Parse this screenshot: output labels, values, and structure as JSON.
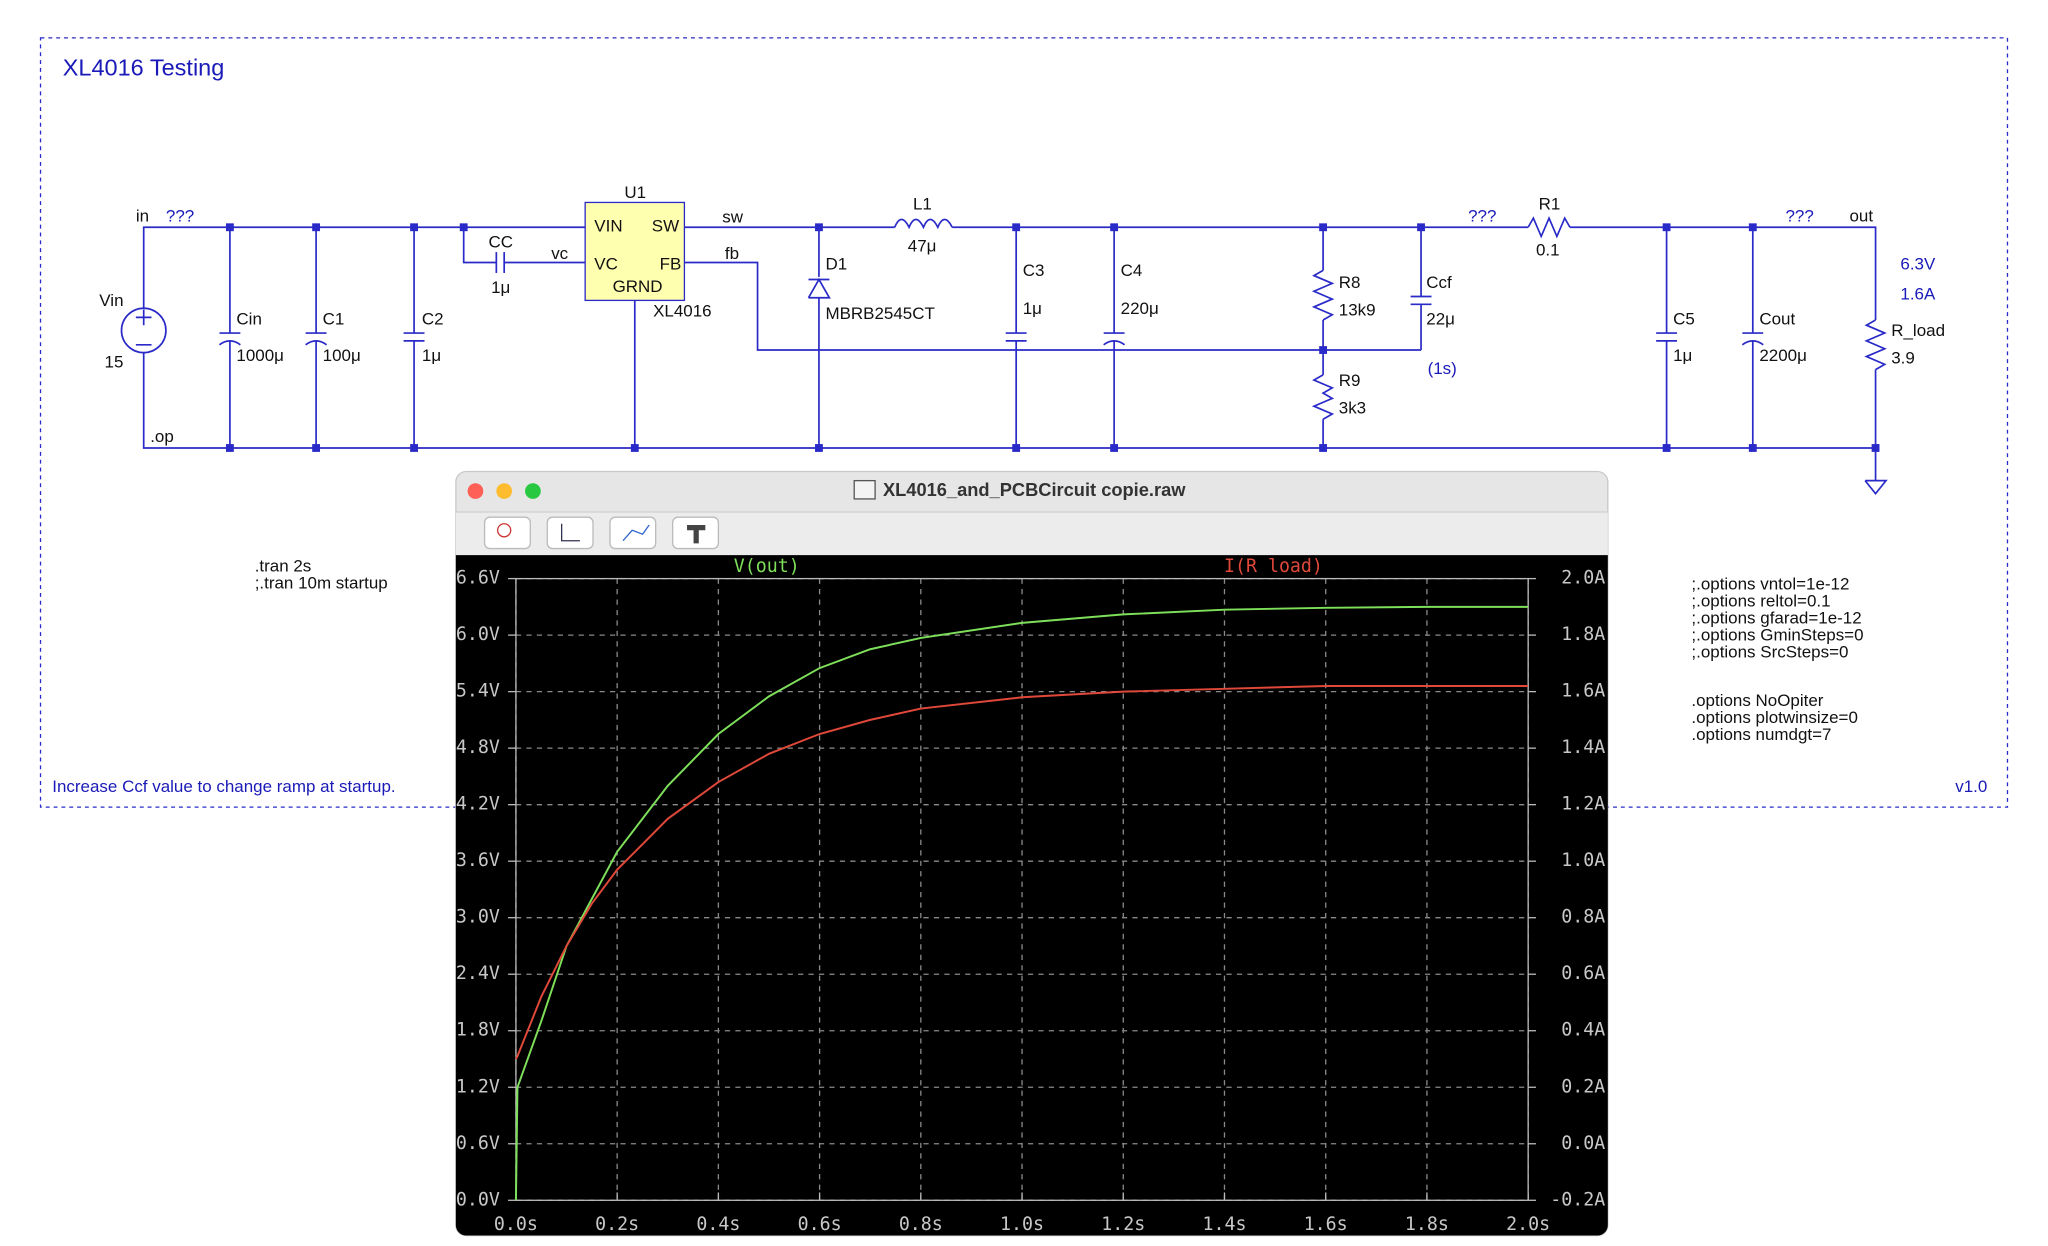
{
  "schematic": {
    "title": "XL4016 Testing",
    "texts": [
      "in",
      "???",
      "Vin",
      "15",
      ".op",
      "Cin",
      "1000μ",
      "C1",
      "100μ",
      "C2",
      "1μ",
      "CC",
      "1μ",
      "vc",
      "U1",
      "VIN",
      "SW",
      "VC",
      "FB",
      "GRND",
      "XL4016",
      "sw",
      "fb",
      "D1",
      "MBRB2545CT",
      "L1",
      "47μ",
      "C3",
      "1μ",
      "C4",
      "220μ",
      "R8",
      "13k9",
      "R9",
      "3k3",
      "Ccf",
      "22μ",
      "(1s)",
      "???",
      "R1",
      "0.1",
      "???",
      "out",
      "C5",
      "1μ",
      "Cout",
      "2200μ",
      "6.3V",
      "1.6A",
      "R_load",
      "3.9"
    ],
    "directives": [
      ".tran 2s",
      ";.tran 10m startup"
    ],
    "options": [
      ";.options vntol=1e-12",
      ";.options reltol=0.1",
      ";.options gfarad=1e-12",
      ";.options GminSteps=0",
      ";.options SrcSteps=0",
      ".options NoOpiter",
      ".options plotwinsize=0",
      ".options numdgt=7"
    ],
    "note": "Increase Ccf value to change ramp at startup.",
    "version": "v1.0"
  },
  "window": {
    "title": "XL4016_and_PCBCircuit copie.raw"
  },
  "chart_data": {
    "type": "line",
    "x": [
      0,
      0.003,
      0.05,
      0.1,
      0.15,
      0.2,
      0.3,
      0.4,
      0.5,
      0.6,
      0.7,
      0.8,
      1.0,
      1.2,
      1.4,
      1.6,
      1.8,
      2.0
    ],
    "xlim": [
      0,
      2
    ],
    "xticks": [
      {
        "value": 0,
        "label": "0.0s"
      },
      {
        "value": 0.2,
        "label": "0.2s"
      },
      {
        "value": 0.4,
        "label": "0.4s"
      },
      {
        "value": 0.6,
        "label": "0.6s"
      },
      {
        "value": 0.8,
        "label": "0.8s"
      },
      {
        "value": 1.0,
        "label": "1.0s"
      },
      {
        "value": 1.2,
        "label": "1.2s"
      },
      {
        "value": 1.4,
        "label": "1.4s"
      },
      {
        "value": 1.6,
        "label": "1.6s"
      },
      {
        "value": 1.8,
        "label": "1.8s"
      },
      {
        "value": 2.0,
        "label": "2.0s"
      }
    ],
    "ylim": [
      0,
      6.6
    ],
    "yticks": [
      {
        "value": 0,
        "label": "0.0V"
      },
      {
        "value": 0.6,
        "label": "0.6V"
      },
      {
        "value": 1.2,
        "label": "1.2V"
      },
      {
        "value": 1.8,
        "label": "1.8V"
      },
      {
        "value": 2.4,
        "label": "2.4V"
      },
      {
        "value": 3.0,
        "label": "3.0V"
      },
      {
        "value": 3.6,
        "label": "3.6V"
      },
      {
        "value": 4.2,
        "label": "4.2V"
      },
      {
        "value": 4.8,
        "label": "4.8V"
      },
      {
        "value": 5.4,
        "label": "5.4V"
      },
      {
        "value": 6.0,
        "label": "6.0V"
      },
      {
        "value": 6.6,
        "label": "6.6V"
      }
    ],
    "y2lim": [
      -0.2,
      2.0
    ],
    "y2ticks": [
      {
        "value": -0.2,
        "label": "-0.2A"
      },
      {
        "value": 0,
        "label": "0.0A"
      },
      {
        "value": 0.2,
        "label": "0.2A"
      },
      {
        "value": 0.4,
        "label": "0.4A"
      },
      {
        "value": 0.6,
        "label": "0.6A"
      },
      {
        "value": 0.8,
        "label": "0.8A"
      },
      {
        "value": 1.0,
        "label": "1.0A"
      },
      {
        "value": 1.2,
        "label": "1.2A"
      },
      {
        "value": 1.4,
        "label": "1.4A"
      },
      {
        "value": 1.6,
        "label": "1.6A"
      },
      {
        "value": 1.8,
        "label": "1.8A"
      },
      {
        "value": 2.0,
        "label": "2.0A"
      }
    ],
    "grid": true,
    "series": [
      {
        "name": "V(out)",
        "color": "#7ee05a",
        "values": [
          0,
          1.2,
          1.9,
          2.7,
          3.2,
          3.7,
          4.4,
          4.95,
          5.35,
          5.65,
          5.85,
          5.97,
          6.13,
          6.22,
          6.27,
          6.29,
          6.3,
          6.3
        ]
      },
      {
        "name": "I(R load)",
        "color": "#e0483a",
        "axis": "y2",
        "values": [
          0.3,
          0.31,
          0.52,
          0.7,
          0.85,
          0.97,
          1.15,
          1.28,
          1.38,
          1.45,
          1.5,
          1.54,
          1.58,
          1.6,
          1.61,
          1.62,
          1.62,
          1.62
        ]
      }
    ]
  }
}
